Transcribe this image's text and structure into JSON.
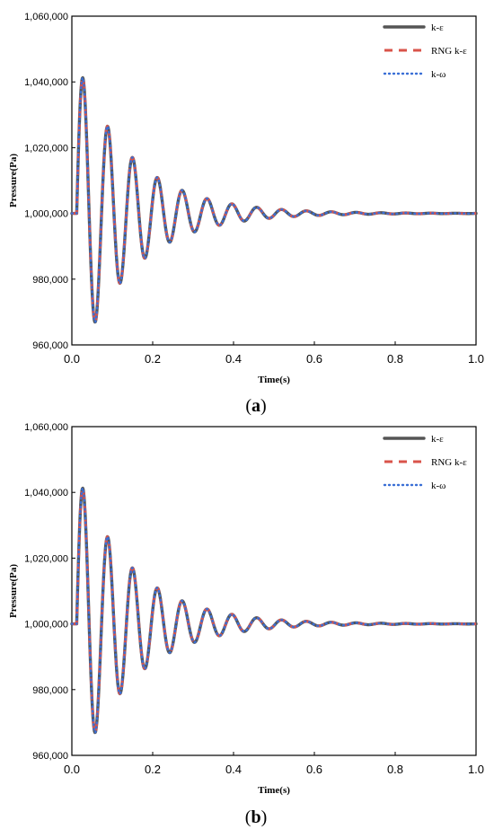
{
  "colors": {
    "k_epsilon": "#555555",
    "rng_k_epsilon": "#d9534a",
    "k_omega": "#3a6fd6",
    "axis": "#000000"
  },
  "chart_data": [
    {
      "type": "line",
      "panel": "(a)",
      "panel_open": "(",
      "panel_letter": "a",
      "panel_close": ")",
      "xlabel": "Time(s)",
      "ylabel": "Pressure(Pa)",
      "xlim": [
        0.0,
        1.0
      ],
      "ylim": [
        960000,
        1060000
      ],
      "x_ticks": [
        "0.0",
        "0.2",
        "0.4",
        "0.6",
        "0.8",
        "1.0"
      ],
      "y_ticks": [
        "960,000",
        "980,000",
        "1,000,000",
        "1,020,000",
        "1,040,000",
        "1,060,000"
      ],
      "grid": false,
      "legend_position": "top-right",
      "signal": {
        "baseline": 1000000,
        "start": 0.012,
        "period": 0.0615,
        "amplitude": 46000,
        "decay": 7.2
      },
      "series": [
        {
          "name": "k-ε",
          "style": "solid",
          "color_key": "k_epsilon"
        },
        {
          "name": "RNG k-ε",
          "style": "dashed",
          "color_key": "rng_k_epsilon"
        },
        {
          "name": "k-ω",
          "style": "dotted",
          "color_key": "k_omega"
        }
      ]
    },
    {
      "type": "line",
      "panel": "(b)",
      "panel_open": "(",
      "panel_letter": "b",
      "panel_close": ")",
      "xlabel": "Time(s)",
      "ylabel": "Pressure(Pa)",
      "xlim": [
        0.0,
        1.0
      ],
      "ylim": [
        960000,
        1060000
      ],
      "x_ticks": [
        "0.0",
        "0.2",
        "0.4",
        "0.6",
        "0.8",
        "1.0"
      ],
      "y_ticks": [
        "960,000",
        "980,000",
        "1,000,000",
        "1,020,000",
        "1,040,000",
        "1,060,000"
      ],
      "grid": false,
      "legend_position": "top-right",
      "signal": {
        "baseline": 1000000,
        "start": 0.012,
        "period": 0.0615,
        "amplitude": 46000,
        "decay": 7.2
      },
      "series": [
        {
          "name": "k-ε",
          "style": "solid",
          "color_key": "k_epsilon"
        },
        {
          "name": "RNG k-ε",
          "style": "dashed",
          "color_key": "rng_k_epsilon"
        },
        {
          "name": "k-ω",
          "style": "dotted",
          "color_key": "k_omega"
        }
      ]
    }
  ]
}
